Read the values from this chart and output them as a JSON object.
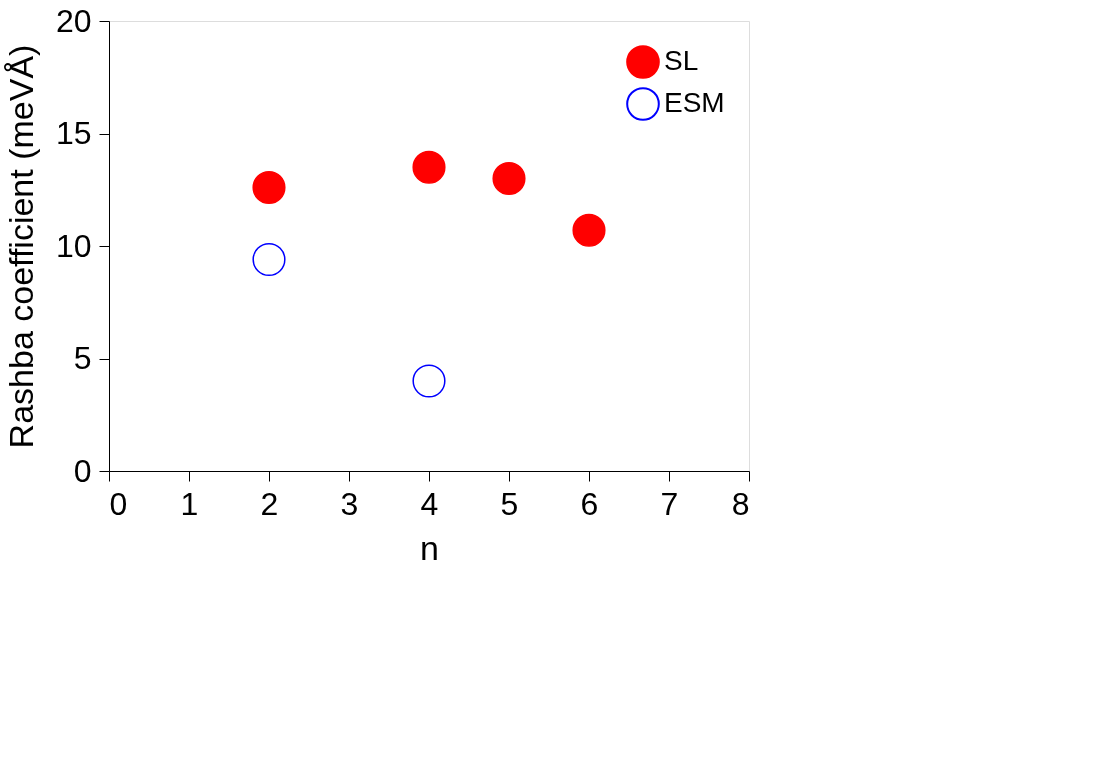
{
  "chart_data": {
    "type": "scatter",
    "xlabel": "n",
    "ylabel": "Rashba coefficient (meVÅ)",
    "xlim": [
      0,
      8
    ],
    "xticks": [
      0,
      1,
      2,
      3,
      4,
      5,
      6,
      7,
      8
    ],
    "ylim": [
      0,
      20
    ],
    "yticks": [
      0,
      5,
      10,
      15,
      20
    ],
    "grid": false,
    "legend": "top right",
    "marker": "circle",
    "series": [
      {
        "name": "SL",
        "color": "#ff0000",
        "x": [
          2,
          4,
          5,
          6
        ],
        "values": [
          12.6,
          13.5,
          13.0,
          10.7
        ]
      },
      {
        "name": "ESM",
        "color": "#0000ff",
        "x": [
          2,
          4
        ],
        "values": [
          9.4,
          4.0
        ]
      }
    ]
  }
}
